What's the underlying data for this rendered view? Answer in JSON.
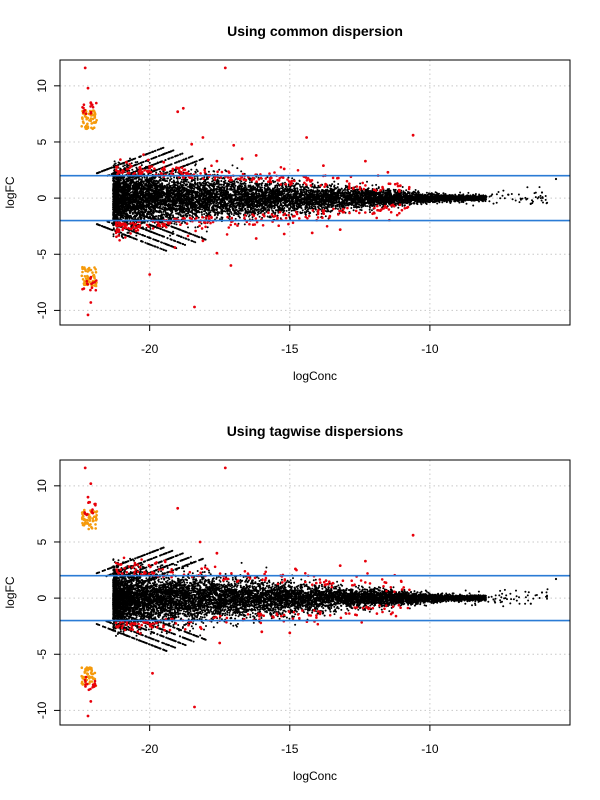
{
  "chart_data": [
    {
      "type": "scatter",
      "title": "Using common dispersion",
      "xlabel": "logConc",
      "ylabel": "logFC",
      "xlim": [
        -23.2,
        -5
      ],
      "ylim": [
        -11.3,
        12.3
      ],
      "x_ticks": [
        -20,
        -15,
        -10
      ],
      "y_ticks": [
        -10,
        -5,
        0,
        5,
        10
      ],
      "grid": true,
      "legend": "none",
      "hlines": [
        2,
        -2
      ],
      "colors": {
        "bulk": "#000000",
        "de": "#e8000b",
        "zero_count": "#f59a0b",
        "hline": "#2a7bd5",
        "grid": "#c8c8c8",
        "frame": "#000000"
      },
      "series": [
        {
          "role": "bulk",
          "points_described": "dense cloud of tags, logFC spread about 4 at logConc -21 narrowing to about 0.4 near -8, sparse tail to about -5.5"
        },
        {
          "role": "de",
          "points": [
            [
              -22.3,
              11.6
            ],
            [
              -22.2,
              9.8
            ],
            [
              -22.1,
              8.5
            ],
            [
              -18.8,
              8.0
            ],
            [
              -19.0,
              7.7
            ],
            [
              -17.3,
              11.6
            ],
            [
              -10.6,
              5.6
            ],
            [
              -14.4,
              5.4
            ],
            [
              -18.1,
              5.4
            ],
            [
              -18.5,
              4.8
            ],
            [
              -17.0,
              4.7
            ],
            [
              -16.2,
              3.8
            ],
            [
              -12.3,
              3.3
            ],
            [
              -16.7,
              3.5
            ],
            [
              -17.6,
              3.3
            ],
            [
              -19.5,
              3.2
            ],
            [
              -13.8,
              2.9
            ],
            [
              -15.2,
              2.6
            ],
            [
              -11.5,
              2.3
            ],
            [
              -20.0,
              -6.8
            ],
            [
              -18.4,
              -9.7
            ],
            [
              -17.1,
              -6.0
            ],
            [
              -17.6,
              -4.9
            ],
            [
              -19.1,
              -4.4
            ],
            [
              -16.2,
              -3.6
            ],
            [
              -15.2,
              -3.2
            ],
            [
              -14.2,
              -3.1
            ],
            [
              -13.2,
              -2.8
            ],
            [
              -18.1,
              -3.8
            ],
            [
              -22.1,
              -9.3
            ],
            [
              -22.2,
              -10.4
            ]
          ]
        },
        {
          "role": "zero_count",
          "points_described": "orange cluster at logConc about -22.2, logFC 6.3 to 7.7 and -6.2 to -7.8"
        },
        {
          "role": "reference",
          "points": [
            [
              -5.5,
              1.7
            ],
            [
              -6.0,
              0.5
            ],
            [
              -6.4,
              -0.5
            ],
            [
              -7.2,
              0.3
            ]
          ]
        }
      ]
    },
    {
      "type": "scatter",
      "title": "Using tagwise dispersions",
      "xlabel": "logConc",
      "ylabel": "logFC",
      "xlim": [
        -23.2,
        -5
      ],
      "ylim": [
        -11.3,
        12.3
      ],
      "x_ticks": [
        -20,
        -15,
        -10
      ],
      "y_ticks": [
        -10,
        -5,
        0,
        5,
        10
      ],
      "grid": true,
      "legend": "none",
      "hlines": [
        2,
        -2
      ],
      "colors": {
        "bulk": "#000000",
        "de": "#e8000b",
        "zero_count": "#f59a0b",
        "hline": "#2a7bd5",
        "grid": "#c8c8c8",
        "frame": "#000000"
      },
      "series": [
        {
          "role": "bulk",
          "points_described": "dense cloud of tags, logFC spread about 4 at logConc -21 narrowing to about 0.4 near -8, sparse tail to about -5.5"
        },
        {
          "role": "de",
          "points": [
            [
              -22.3,
              11.6
            ],
            [
              -22.1,
              10.2
            ],
            [
              -22.2,
              9.0
            ],
            [
              -19.0,
              8.0
            ],
            [
              -17.3,
              11.6
            ],
            [
              -10.6,
              5.6
            ],
            [
              -18.2,
              5.0
            ],
            [
              -17.6,
              4.0
            ],
            [
              -14.8,
              2.6
            ],
            [
              -12.3,
              3.3
            ],
            [
              -13.2,
              2.9
            ],
            [
              -19.9,
              -6.7
            ],
            [
              -18.4,
              -9.7
            ],
            [
              -17.5,
              -4.0
            ],
            [
              -16.0,
              -3.0
            ],
            [
              -15.0,
              -3.1
            ],
            [
              -22.2,
              -10.5
            ],
            [
              -22.1,
              -9.2
            ]
          ]
        },
        {
          "role": "zero_count",
          "points_described": "orange cluster at logConc about -22.2, logFC 6.3 to 7.7 and -6.2 to -7.8"
        },
        {
          "role": "reference",
          "points": [
            [
              -5.5,
              1.7
            ],
            [
              -6.0,
              0.5
            ],
            [
              -6.4,
              -0.5
            ]
          ]
        }
      ]
    }
  ]
}
